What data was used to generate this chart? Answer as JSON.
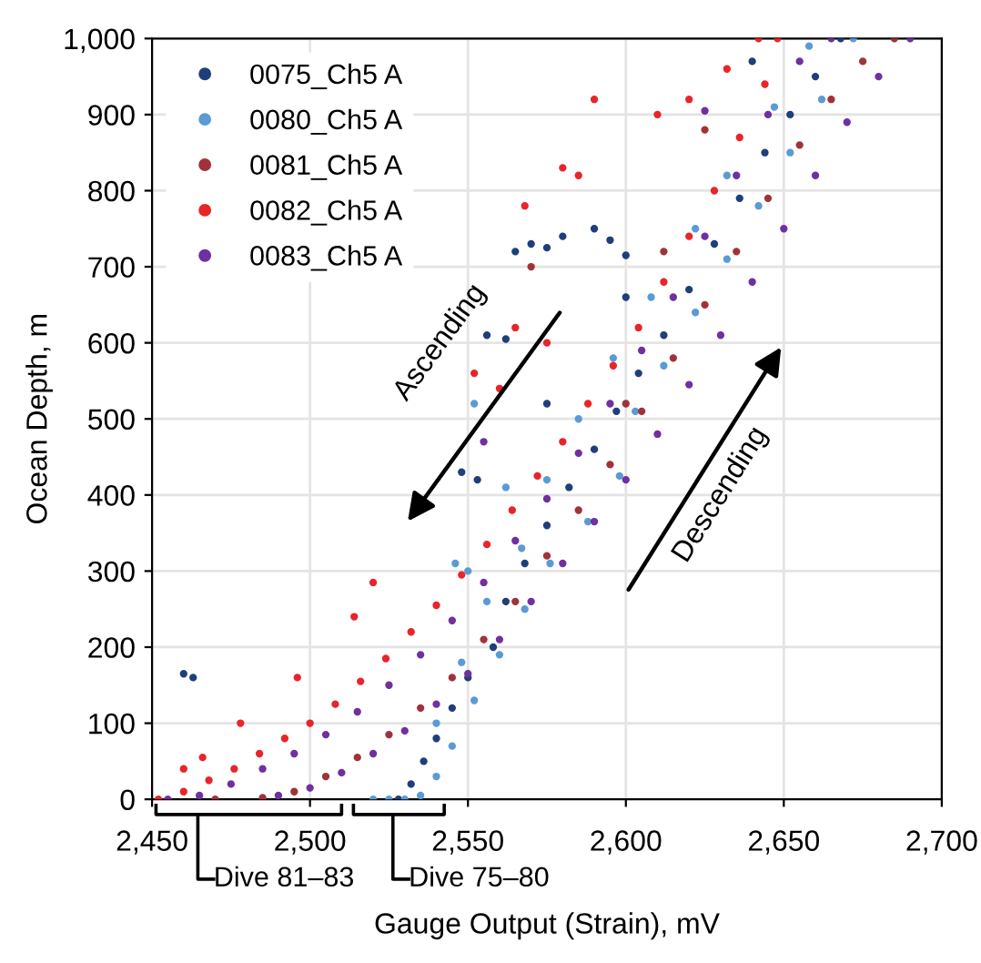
{
  "chart_data": {
    "type": "scatter",
    "xlabel": "Gauge Output (Strain), mV",
    "ylabel": "Ocean Depth, m",
    "xlim": [
      2450,
      2700
    ],
    "xticks": [
      {
        "value": 2450,
        "label": "2,450"
      },
      {
        "value": 2500,
        "label": "2,500"
      },
      {
        "value": 2550,
        "label": "2,550"
      },
      {
        "value": 2600,
        "label": "2,600"
      },
      {
        "value": 2650,
        "label": "2,650"
      },
      {
        "value": 2700,
        "label": "2,700"
      }
    ],
    "ylim": [
      0,
      1000
    ],
    "yticks": [
      0,
      100,
      200,
      300,
      400,
      500,
      600,
      700,
      800,
      900,
      {
        "value": 1000,
        "label": "1,000"
      }
    ],
    "grid": true,
    "legend": "top left",
    "marker": "circle",
    "annotations": [
      "Ascending",
      "Descending",
      "Dive 81–83",
      "Dive 75–80"
    ],
    "series": [
      {
        "name": "0075_Ch5 A",
        "color": "#1f3f7a",
        "x": [
          2528,
          2532,
          2536,
          2540,
          2545,
          2550,
          2558,
          2562,
          2568,
          2575,
          2582,
          2590,
          2597,
          2604,
          2612,
          2620,
          2628,
          2636,
          2644,
          2652,
          2660,
          2668,
          2565,
          2570,
          2575,
          2580,
          2590,
          2595,
          2600,
          2556,
          2562,
          2548,
          2553,
          2460,
          2463,
          2575,
          2600,
          2640
        ],
        "values": [
          0,
          20,
          50,
          80,
          120,
          160,
          200,
          260,
          310,
          360,
          410,
          460,
          510,
          560,
          610,
          670,
          730,
          790,
          850,
          900,
          950,
          1000,
          720,
          730,
          725,
          740,
          750,
          735,
          715,
          610,
          605,
          430,
          420,
          165,
          160,
          520,
          660,
          970
        ]
      },
      {
        "name": "0080_Ch5 A",
        "color": "#5b9bd5",
        "x": [
          2520,
          2525,
          2530,
          2535,
          2540,
          2545,
          2552,
          2560,
          2568,
          2576,
          2588,
          2598,
          2603,
          2612,
          2622,
          2632,
          2642,
          2652,
          2662,
          2672,
          2540,
          2548,
          2556,
          2567,
          2575,
          2585,
          2596,
          2608,
          2622,
          2632,
          2647,
          2658,
          2546,
          2550,
          2562,
          2552
        ],
        "values": [
          0,
          0,
          0,
          5,
          30,
          70,
          130,
          190,
          250,
          310,
          365,
          425,
          510,
          570,
          640,
          710,
          780,
          850,
          920,
          1000,
          100,
          180,
          260,
          330,
          420,
          500,
          580,
          660,
          750,
          820,
          910,
          990,
          310,
          300,
          410,
          520
        ]
      },
      {
        "name": "0081_Ch5 A",
        "color": "#a0333a",
        "x": [
          2470,
          2485,
          2495,
          2505,
          2515,
          2525,
          2535,
          2545,
          2555,
          2565,
          2575,
          2585,
          2595,
          2605,
          2615,
          2625,
          2635,
          2645,
          2655,
          2665,
          2675,
          2685,
          2570,
          2600,
          2612,
          2625
        ],
        "values": [
          0,
          2,
          10,
          30,
          55,
          85,
          120,
          160,
          210,
          260,
          320,
          380,
          440,
          510,
          580,
          650,
          720,
          790,
          860,
          920,
          970,
          1000,
          700,
          520,
          720,
          880
        ]
      },
      {
        "name": "0082_Ch5 A",
        "color": "#e8252a",
        "x": [
          2452,
          2460,
          2468,
          2476,
          2484,
          2492,
          2500,
          2508,
          2516,
          2524,
          2532,
          2540,
          2548,
          2556,
          2564,
          2572,
          2580,
          2588,
          2596,
          2604,
          2612,
          2620,
          2628,
          2636,
          2644,
          2460,
          2466,
          2478,
          2496,
          2514,
          2520,
          2565,
          2560,
          2552,
          2575,
          2568,
          2580,
          2585,
          2590,
          2610,
          2620,
          2632,
          2642,
          2648
        ],
        "values": [
          0,
          10,
          25,
          40,
          60,
          80,
          100,
          125,
          155,
          185,
          220,
          255,
          295,
          335,
          380,
          425,
          470,
          520,
          570,
          620,
          680,
          740,
          800,
          870,
          940,
          40,
          55,
          100,
          160,
          240,
          285,
          620,
          540,
          560,
          600,
          780,
          830,
          820,
          920,
          900,
          920,
          960,
          1000,
          1000
        ]
      },
      {
        "name": "0083_Ch5 A",
        "color": "#7030a0",
        "x": [
          2455,
          2465,
          2475,
          2485,
          2495,
          2505,
          2515,
          2525,
          2535,
          2545,
          2555,
          2565,
          2575,
          2585,
          2595,
          2605,
          2615,
          2625,
          2635,
          2645,
          2655,
          2665,
          2490,
          2500,
          2510,
          2520,
          2530,
          2540,
          2550,
          2560,
          2570,
          2580,
          2590,
          2600,
          2610,
          2620,
          2630,
          2640,
          2650,
          2660,
          2670,
          2680,
          2690,
          2625,
          2555
        ],
        "values": [
          0,
          5,
          20,
          40,
          60,
          85,
          115,
          150,
          190,
          235,
          285,
          340,
          395,
          455,
          520,
          590,
          660,
          740,
          820,
          900,
          970,
          1000,
          5,
          15,
          35,
          60,
          90,
          125,
          165,
          210,
          260,
          310,
          365,
          420,
          480,
          545,
          610,
          680,
          750,
          820,
          890,
          950,
          1000,
          905,
          470
        ]
      }
    ]
  }
}
